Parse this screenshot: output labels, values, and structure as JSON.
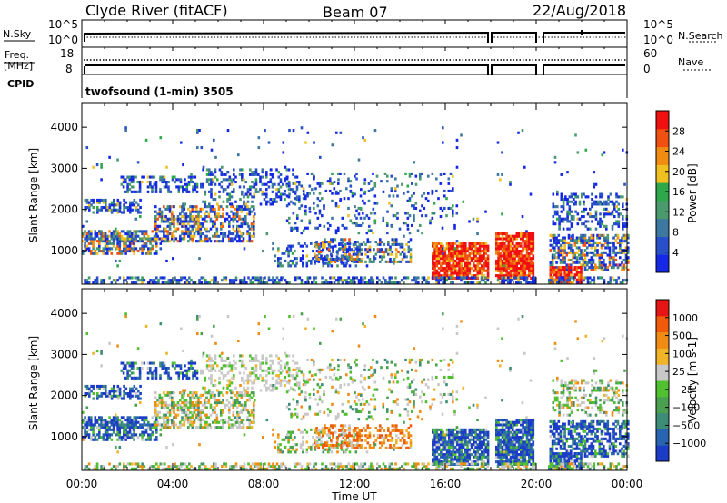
{
  "header": {
    "station": "Clyde River (fitACF)",
    "beam": "Beam 07",
    "date": "22/Aug/2018"
  },
  "strip1": {
    "left_label": "N.Sky",
    "right_label": "N.Search",
    "ticks": [
      "10^5",
      "10^0"
    ]
  },
  "strip2": {
    "left_label": "Freq.",
    "left_unit": "[MHz]",
    "left_ticks": [
      "18",
      "8"
    ],
    "right_label": "Nave",
    "right_ticks": [
      "60",
      "0"
    ]
  },
  "cpid": {
    "label": "CPID",
    "program": "twofsound (1-min) 3505"
  },
  "colors": {
    "power_scale": [
      "#1428e6",
      "#2850c8",
      "#3c78a0",
      "#4a9a6e",
      "#2ea84a",
      "#f0c020",
      "#f08c10",
      "#f05010",
      "#f01010"
    ],
    "velocity_scale": [
      "#1c3cc8",
      "#2864b0",
      "#3c8c78",
      "#4aa050",
      "#50c030",
      "#c8c8c8",
      "#f0b428",
      "#f08c14",
      "#f05a0a",
      "#e61414"
    ]
  },
  "chart_data": [
    {
      "type": "heatmap",
      "name_of_panel": "power",
      "xlabel": "Time UT",
      "ylabel": "Slant Range [km]",
      "xlim": [
        0,
        24
      ],
      "ylim": [
        180,
        4600
      ],
      "x_ticks": [
        "00:00",
        "04:00",
        "08:00",
        "12:00",
        "16:00",
        "20:00",
        "00:00"
      ],
      "y_ticks": [
        1000,
        2000,
        3000,
        4000
      ],
      "colorbar_label": "Power [dB]",
      "colorbar_ticks": [
        4,
        8,
        12,
        16,
        20,
        24,
        28
      ],
      "colorbar_range": [
        0,
        32
      ]
    },
    {
      "type": "heatmap",
      "name_of_panel": "velocity",
      "xlabel": "Time UT",
      "ylabel": "Slant Range [km]",
      "xlim": [
        0,
        24
      ],
      "ylim": [
        180,
        4600
      ],
      "x_ticks": [
        "00:00",
        "04:00",
        "08:00",
        "12:00",
        "16:00",
        "20:00",
        "00:00"
      ],
      "y_ticks": [
        1000,
        2000,
        3000,
        4000
      ],
      "colorbar_label": "Velocity [m s-1]",
      "colorbar_ticks": [
        "1000",
        "500",
        "100",
        "25",
        "−25",
        "−100",
        "−500",
        "−1000"
      ]
    }
  ]
}
